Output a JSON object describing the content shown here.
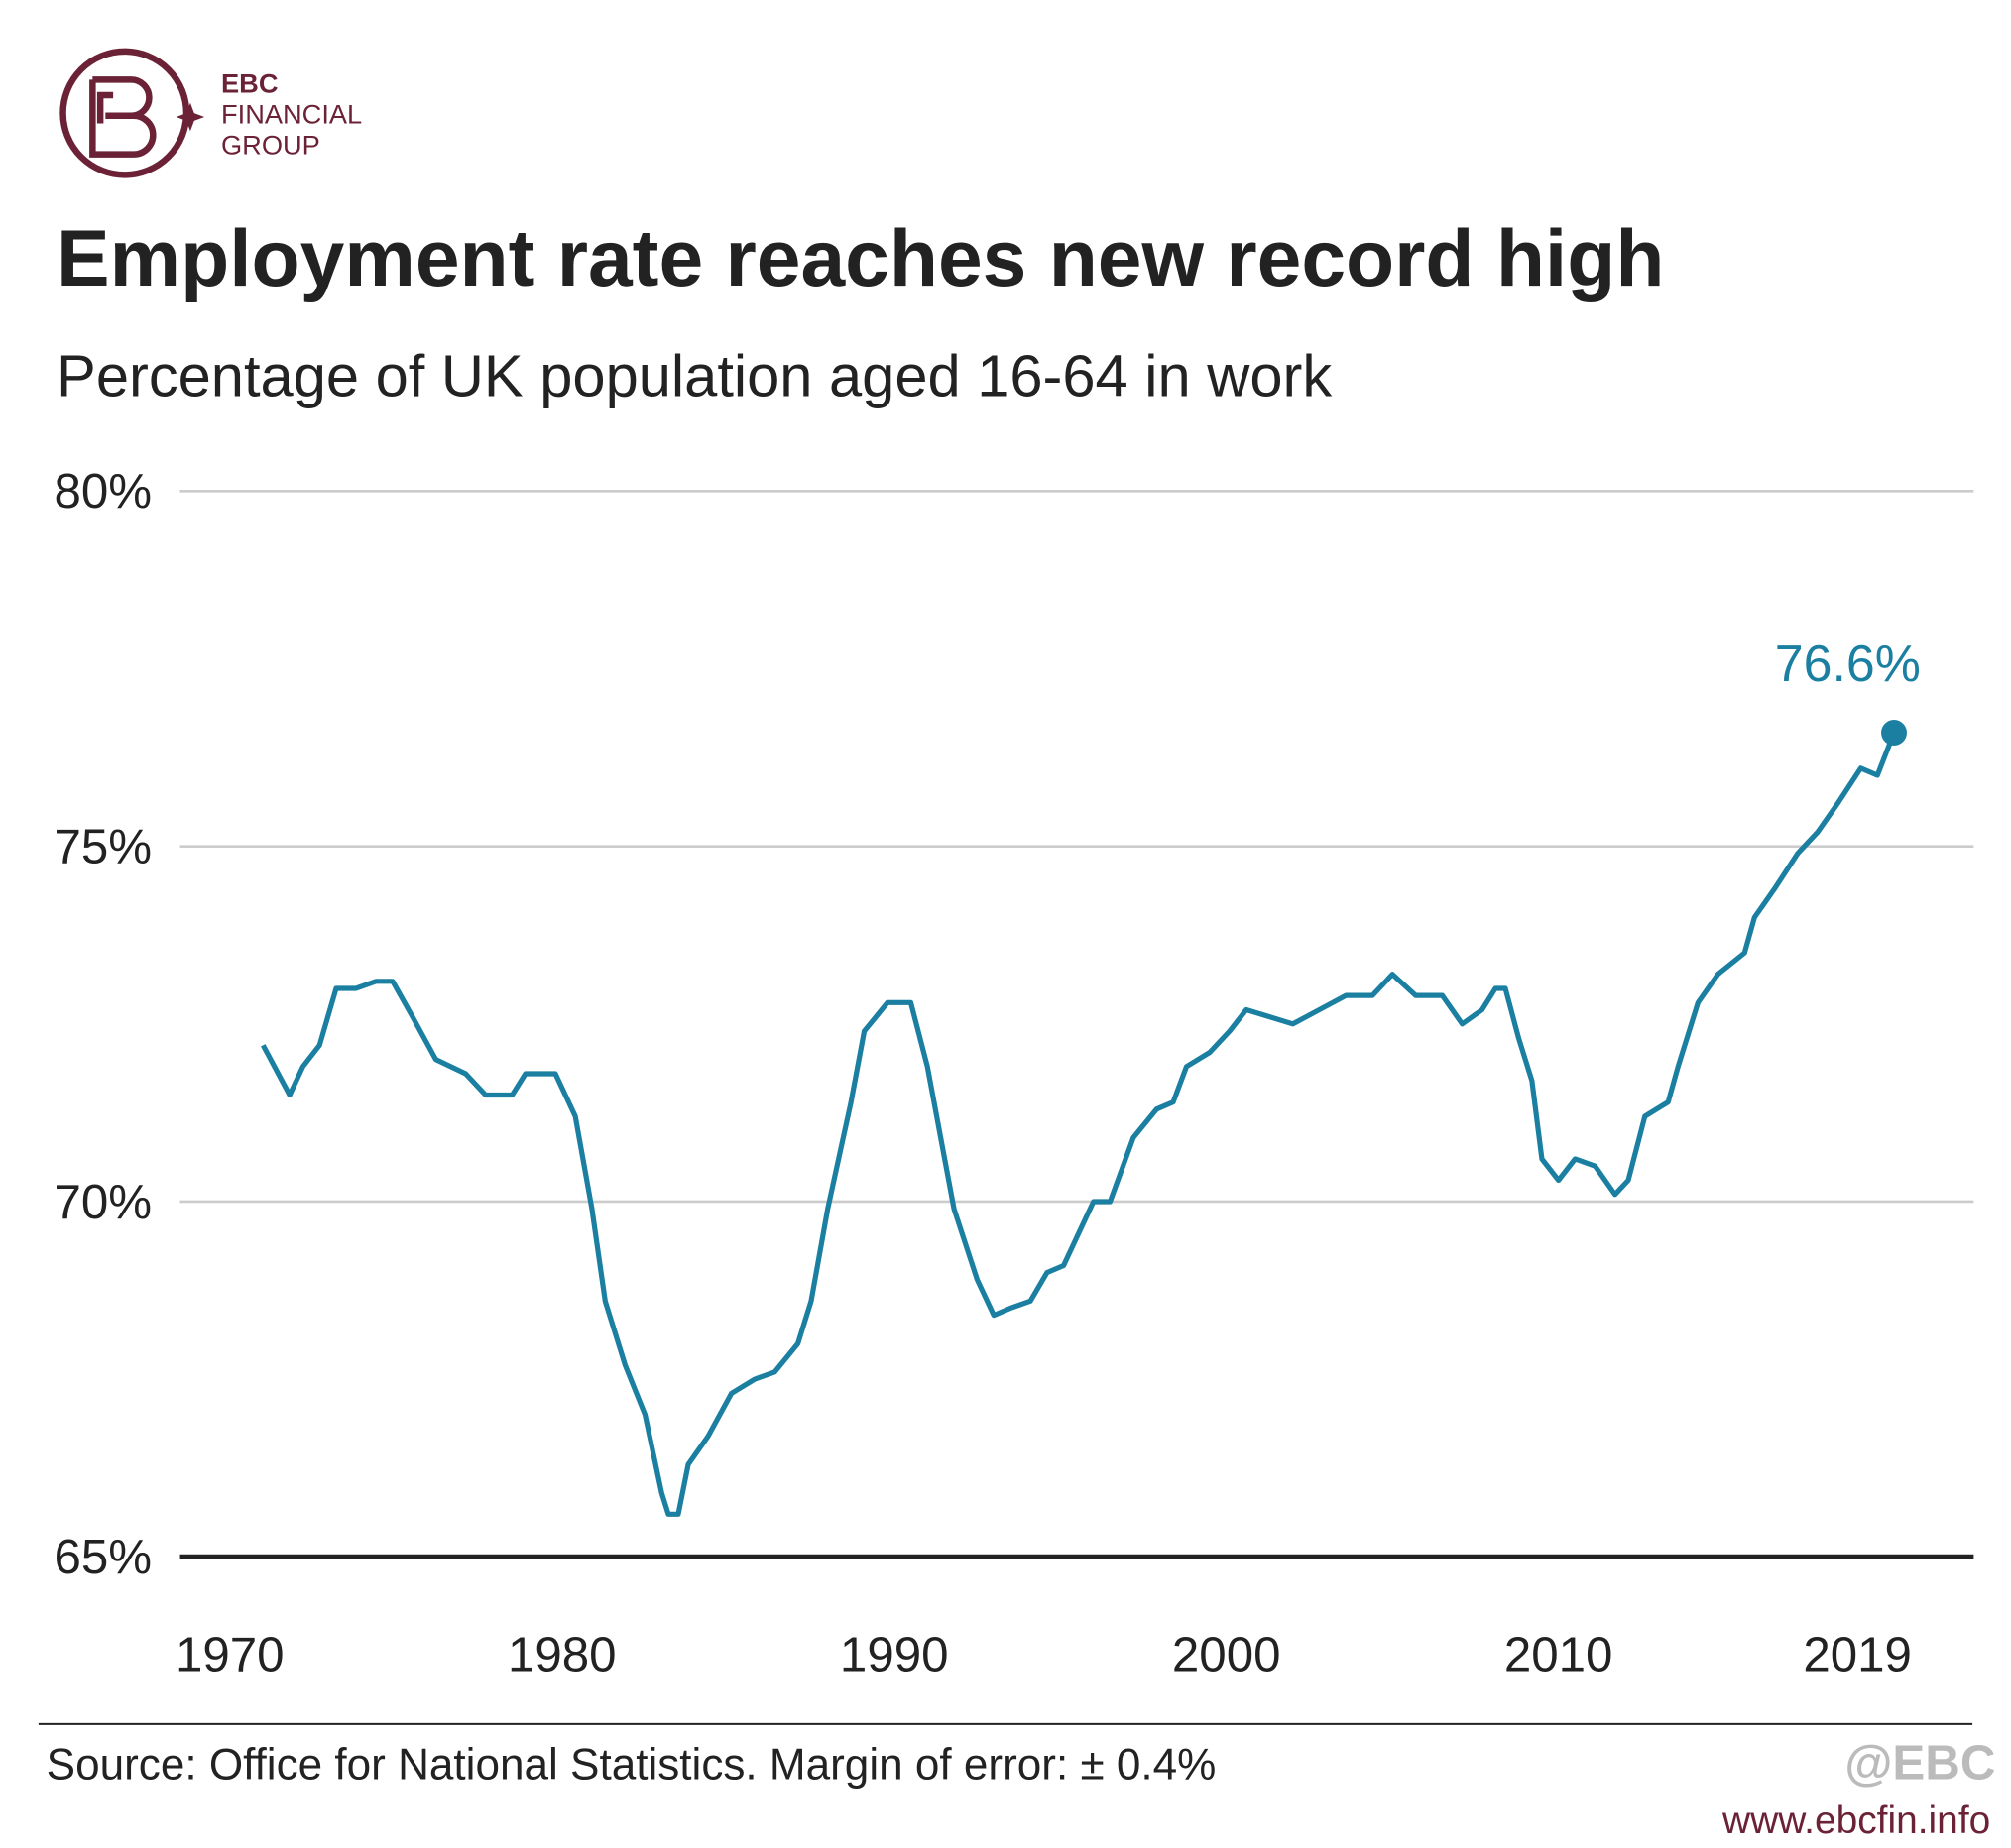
{
  "brand": {
    "name": "EBC",
    "line1": "FINANCIAL",
    "line2": "GROUP"
  },
  "chart_data": {
    "type": "line",
    "title": "Employment rate reaches new record high",
    "subtitle": "Percentage of UK population aged 16-64 in work",
    "x": [
      1971.0,
      1971.8,
      1972.2,
      1972.7,
      1973.2,
      1973.8,
      1974.4,
      1974.9,
      1975.5,
      1976.2,
      1977.1,
      1977.7,
      1978.5,
      1978.9,
      1979.8,
      1980.4,
      1980.9,
      1981.3,
      1981.9,
      1982.5,
      1983.0,
      1983.2,
      1983.5,
      1983.8,
      1984.4,
      1985.1,
      1985.8,
      1986.4,
      1987.1,
      1987.5,
      1988.0,
      1988.7,
      1989.1,
      1989.8,
      1990.5,
      1991.0,
      1991.8,
      1992.5,
      1993.0,
      1993.5,
      1994.1,
      1994.6,
      1995.1,
      1995.6,
      1996.0,
      1996.5,
      1997.2,
      1997.9,
      1998.4,
      1998.8,
      1999.5,
      2000.1,
      2000.6,
      2001.3,
      2002.0,
      2002.8,
      2003.6,
      2004.4,
      2005.0,
      2005.7,
      2006.5,
      2007.1,
      2007.7,
      2008.1,
      2008.4,
      2008.8,
      2009.2,
      2009.5,
      2010.0,
      2010.5,
      2011.1,
      2011.7,
      2012.1,
      2012.6,
      2013.3,
      2013.6,
      2014.2,
      2014.8,
      2015.6,
      2015.9,
      2016.5,
      2017.2,
      2017.8,
      2018.4,
      2019.1,
      2019.6,
      2020.1
    ],
    "series": [
      {
        "name": "Employment rate",
        "color": "#1b7fa1",
        "values": [
          72.2,
          71.5,
          71.9,
          72.2,
          73.0,
          73.0,
          73.1,
          73.1,
          72.6,
          72.0,
          71.8,
          71.5,
          71.5,
          71.8,
          71.8,
          71.2,
          69.9,
          68.6,
          67.7,
          67.0,
          65.9,
          65.6,
          65.6,
          66.3,
          66.7,
          67.3,
          67.5,
          67.6,
          68.0,
          68.6,
          69.9,
          71.4,
          72.4,
          72.8,
          72.8,
          71.9,
          69.9,
          68.9,
          68.4,
          68.5,
          68.6,
          69.0,
          69.1,
          69.6,
          70.0,
          70.0,
          70.9,
          71.3,
          71.4,
          71.9,
          72.1,
          72.4,
          72.7,
          72.6,
          72.5,
          72.7,
          72.9,
          72.9,
          73.2,
          72.9,
          72.9,
          72.5,
          72.7,
          73.0,
          73.0,
          72.3,
          71.7,
          70.6,
          70.3,
          70.6,
          70.5,
          70.1,
          70.3,
          71.2,
          71.4,
          71.9,
          72.8,
          73.2,
          73.5,
          74.0,
          74.4,
          74.9,
          75.2,
          75.6,
          76.1,
          76.0,
          76.6
        ]
      }
    ],
    "end_label": "76.6%",
    "xlim": [
      1968.5,
      2022.5
    ],
    "xticks": [
      1970,
      1980,
      1990,
      2000,
      2010,
      2019
    ],
    "ylim": [
      65,
      80
    ],
    "yticks": [
      {
        "value": 65,
        "label": "65%"
      },
      {
        "value": 70,
        "label": "70%"
      },
      {
        "value": 75,
        "label": "75%"
      },
      {
        "value": 80,
        "label": "80%"
      }
    ],
    "grid": true,
    "source": "Source: Office for National Statistics. Margin of error: ± 0.4%"
  },
  "footer": {
    "handle": "@EBC",
    "url": "www.ebcfin.info"
  }
}
